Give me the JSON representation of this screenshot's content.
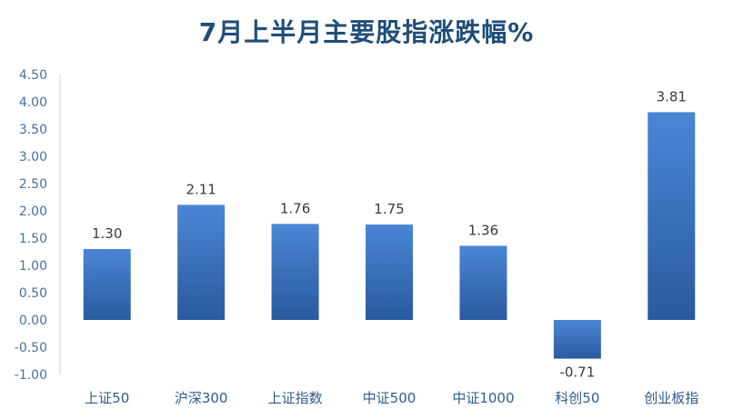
{
  "chart_data": {
    "type": "bar",
    "title": "7月上半月主要股指涨跌幅%",
    "categories": [
      "上证50",
      "沪深300",
      "上证指数",
      "中证500",
      "中证1000",
      "科创50",
      "创业板指"
    ],
    "values": [
      1.3,
      2.11,
      1.76,
      1.75,
      1.36,
      -0.71,
      3.81
    ],
    "data_labels": [
      "1.30",
      "2.11",
      "1.76",
      "1.75",
      "1.36",
      "-0.71",
      "3.81"
    ],
    "yticks": [
      "4.50",
      "4.00",
      "3.50",
      "3.00",
      "2.50",
      "2.00",
      "1.50",
      "1.00",
      "0.50",
      "0.00",
      "-0.50",
      "-1.00"
    ],
    "ylim": [
      -1.0,
      4.5
    ],
    "grid": false,
    "legend": "none",
    "colors": {
      "bar_top": "#4a86d6",
      "bar_bottom": "#2a5a9e",
      "title": "#1f4e79",
      "axis": "#c8d4e3"
    }
  }
}
